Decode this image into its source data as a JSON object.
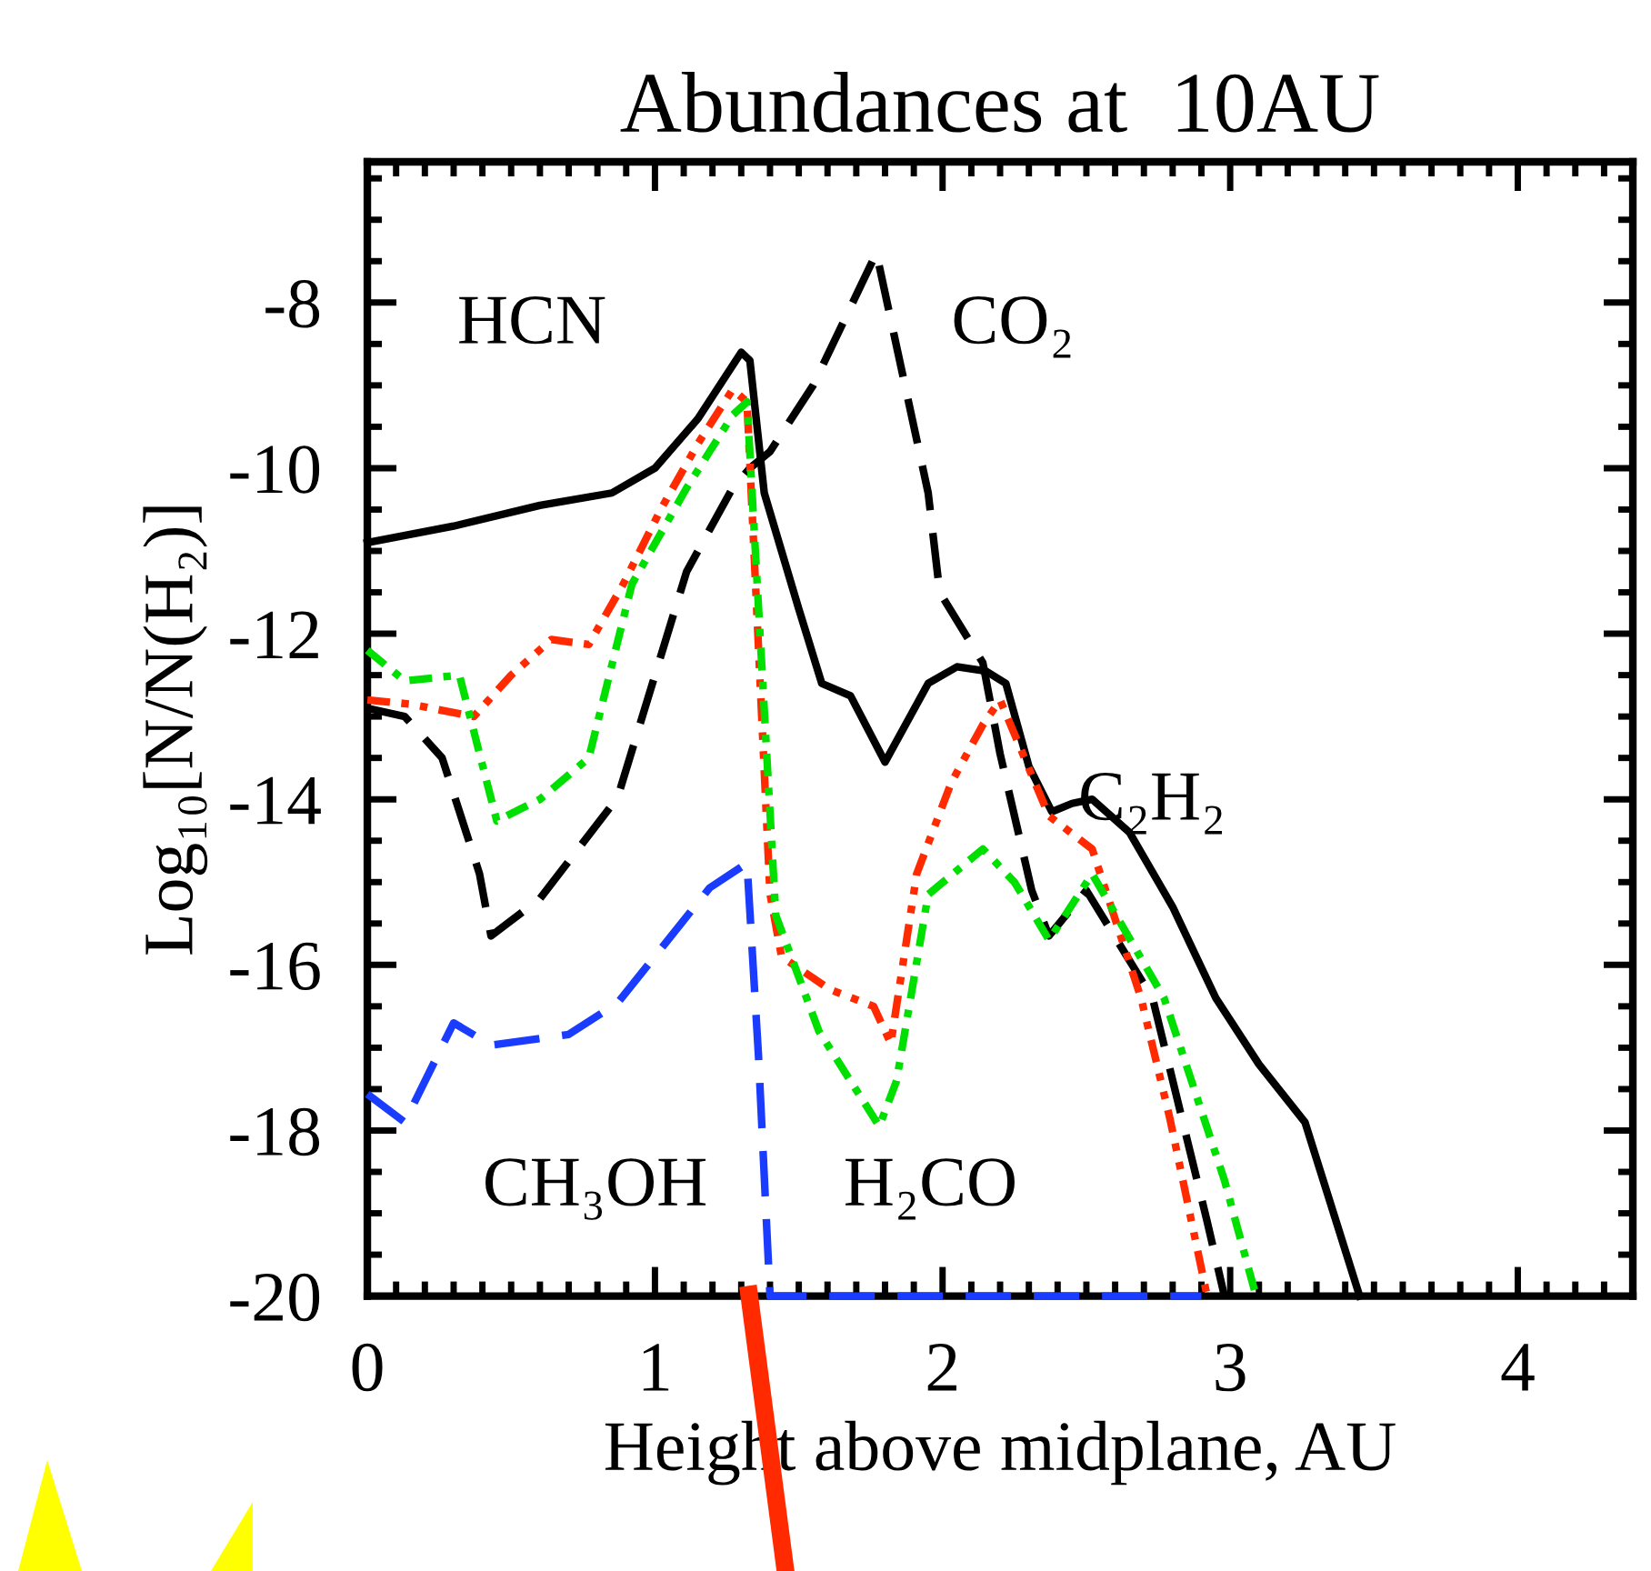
{
  "chart_data": {
    "type": "line",
    "title": "Abundances at  10AU",
    "xlabel": "Height above midplane, AU",
    "ylabel": "Log₁₀[N/N(H₂)]",
    "xlim": [
      0,
      4.4
    ],
    "xticks": [
      0,
      1,
      2,
      3,
      4
    ],
    "ylim": [
      -20,
      -6.3
    ],
    "yticks": [
      -20,
      -18,
      -16,
      -14,
      -12,
      -10,
      -8
    ],
    "grid": false,
    "marker": "none",
    "annotations": [
      "HCN",
      "CO₂",
      "C₂H₂",
      "CH₃OH",
      "H₂CO"
    ],
    "series": [
      {
        "color": "#000000",
        "line_style": "solid",
        "x": [
          0,
          0.3,
          0.6,
          0.85,
          1.0,
          1.15,
          1.3,
          1.33,
          1.38,
          1.5,
          1.58,
          1.68,
          1.8,
          1.95,
          2.05,
          2.15,
          2.22,
          2.3,
          2.38,
          2.45,
          2.52,
          2.65,
          2.8,
          2.95,
          3.1,
          3.26,
          3.45
        ],
        "values": [
          -10.9,
          -10.7,
          -10.45,
          -10.3,
          -10.0,
          -9.4,
          -8.6,
          -8.7,
          -10.3,
          -11.7,
          -12.6,
          -12.75,
          -13.55,
          -12.6,
          -12.4,
          -12.45,
          -12.6,
          -13.6,
          -14.15,
          -14.05,
          -14.0,
          -14.4,
          -15.3,
          -16.4,
          -17.2,
          -17.9,
          -20
        ]
      },
      {
        "color": "#000000",
        "line_style": "dashed",
        "x": [
          0,
          0.13,
          0.26,
          0.39,
          0.43,
          0.6,
          0.87,
          1.11,
          1.27,
          1.33,
          1.4,
          1.55,
          1.77,
          1.95,
          1.99,
          2.14,
          2.2,
          2.31,
          2.37,
          2.5,
          2.73,
          2.92,
          2.98
        ],
        "values": [
          -12.9,
          -13.0,
          -13.5,
          -14.9,
          -15.65,
          -15.2,
          -13.98,
          -11.25,
          -10.24,
          -10.0,
          -9.8,
          -9.0,
          -7.4,
          -10.3,
          -11.5,
          -12.35,
          -13.45,
          -15.1,
          -15.65,
          -15.1,
          -16.4,
          -19.1,
          -20
        ]
      },
      {
        "color": "#ff2a00",
        "line_style": "dotted",
        "x": [
          0,
          0.15,
          0.37,
          0.5,
          0.64,
          0.77,
          0.89,
          1.02,
          1.15,
          1.27,
          1.32,
          1.4,
          1.44,
          1.61,
          1.76,
          1.82,
          1.91,
          2.03,
          2.14,
          2.2,
          2.37,
          2.52,
          2.69,
          2.79,
          2.92
        ],
        "values": [
          -12.8,
          -12.85,
          -13.0,
          -12.5,
          -12.07,
          -12.13,
          -11.4,
          -10.5,
          -9.7,
          -9.05,
          -9.2,
          -15.14,
          -15.9,
          -16.3,
          -16.5,
          -16.95,
          -14.9,
          -13.8,
          -13.1,
          -12.8,
          -14.2,
          -14.6,
          -16.4,
          -17.85,
          -20
        ]
      },
      {
        "color": "#00e000",
        "line_style": "dashdot",
        "x": [
          0,
          0.13,
          0.32,
          0.45,
          0.6,
          0.77,
          0.92,
          1.11,
          1.27,
          1.32,
          1.42,
          1.57,
          1.78,
          1.84,
          1.95,
          2.14,
          2.25,
          2.37,
          2.52,
          2.77,
          2.98,
          3.09
        ],
        "values": [
          -12.2,
          -12.57,
          -12.5,
          -14.26,
          -14.0,
          -13.5,
          -11.4,
          -10.24,
          -9.36,
          -9.2,
          -15.4,
          -16.8,
          -17.95,
          -17.4,
          -15.15,
          -14.6,
          -15.0,
          -15.7,
          -14.9,
          -16.4,
          -18.6,
          -20
        ]
      },
      {
        "color": "#1a3cff",
        "line_style": "dashed",
        "x": [
          0,
          0.13,
          0.3,
          0.43,
          0.7,
          0.87,
          1.19,
          1.32,
          1.36,
          1.4,
          2.9
        ],
        "values": [
          -17.56,
          -17.9,
          -16.7,
          -16.97,
          -16.84,
          -16.46,
          -15.07,
          -14.77,
          -17.1,
          -20,
          -20
        ]
      }
    ]
  }
}
